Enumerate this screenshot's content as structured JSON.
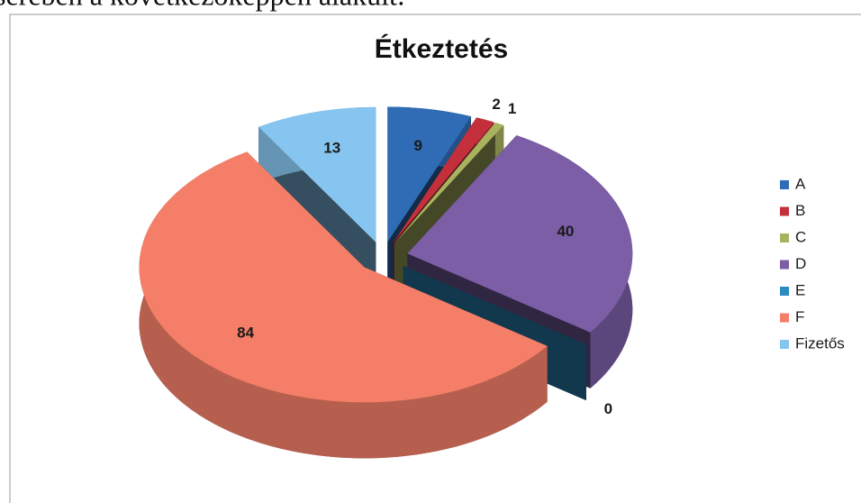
{
  "text_above": "serében a következőképpen alakult:",
  "chart_data": {
    "type": "pie3d",
    "title": "Étkeztetés",
    "categories": [
      "A",
      "B",
      "C",
      "D",
      "E",
      "F",
      "Fizetős"
    ],
    "values": [
      9,
      2,
      1,
      40,
      0,
      84,
      13
    ],
    "colors": [
      "#2f6cb5",
      "#c3303c",
      "#a9b35f",
      "#7b5ea6",
      "#2b8bc0",
      "#f47e68",
      "#86c5f0"
    ],
    "legend": "right"
  }
}
